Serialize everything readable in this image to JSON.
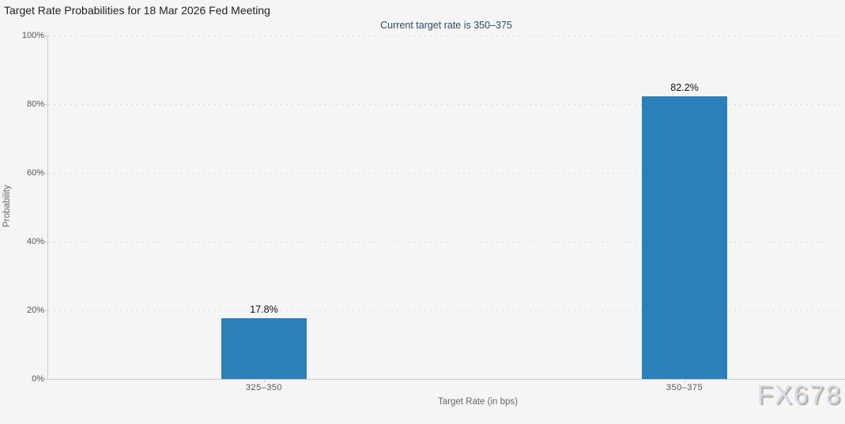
{
  "chart_data": {
    "type": "bar",
    "title": "Target Rate Probabilities for 18 Mar 2026 Fed Meeting",
    "subtitle": "Current target rate is 350–375",
    "categories": [
      "325–350",
      "350–375"
    ],
    "values": [
      17.8,
      82.2
    ],
    "value_labels": [
      "17.8%",
      "82.2%"
    ],
    "xlabel": "Target Rate (in bps)",
    "ylabel": "Probability",
    "ylim": [
      0,
      100
    ],
    "yticks": [
      0,
      20,
      40,
      60,
      80,
      100
    ],
    "ytick_labels": [
      "0%",
      "20%",
      "40%",
      "60%",
      "80%",
      "100%"
    ],
    "grid": "horizontal-dotted",
    "legend": "none",
    "bar_color": "#2b80b9",
    "background_color": "#f5f5f5",
    "subtitle_color": "#2c4a66",
    "watermark": "FX678"
  }
}
